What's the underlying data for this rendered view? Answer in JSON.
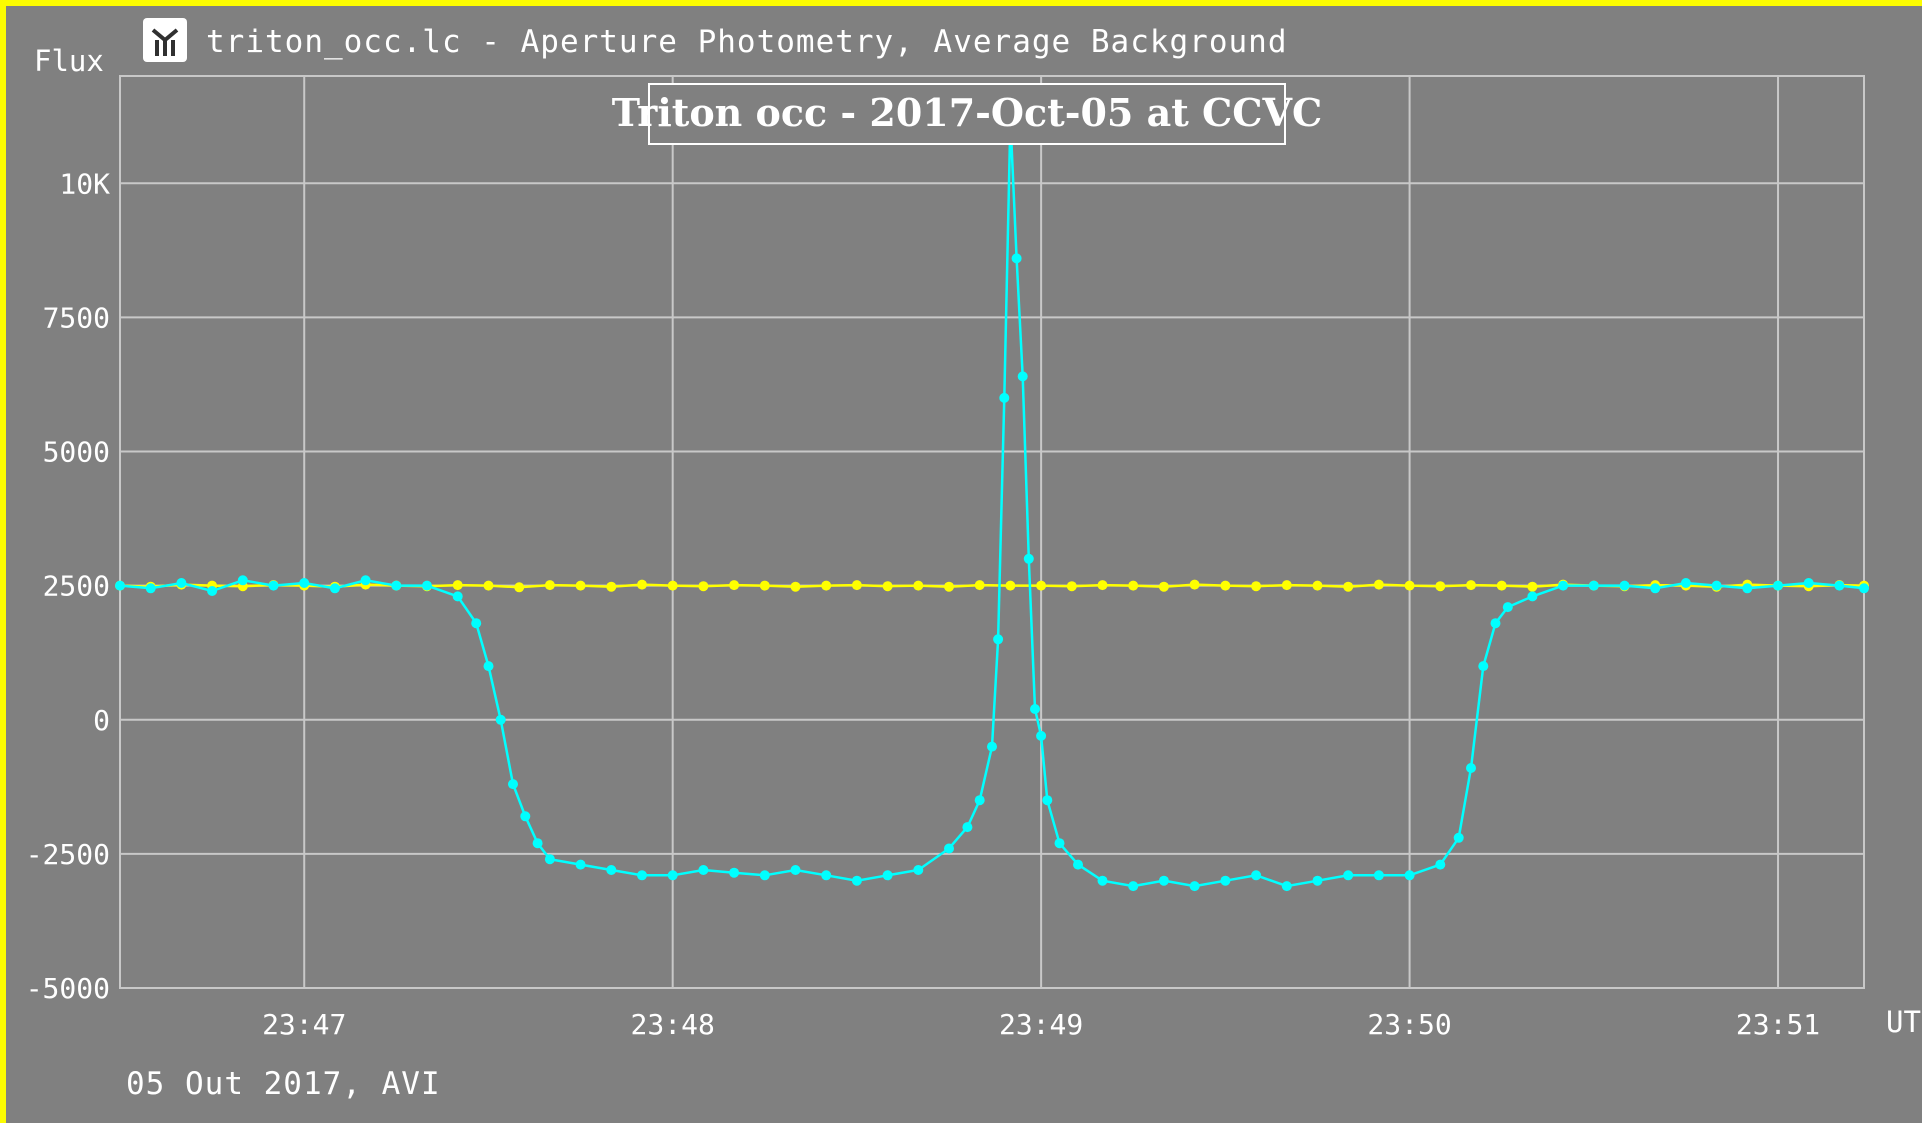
{
  "window": {
    "title": "triton_occ.lc - Aperture Photometry, Average Background",
    "footer": "05 Out 2017, AVI",
    "icon": "telescope-app-icon"
  },
  "chart_data": {
    "type": "line",
    "title": "Triton occ - 2017-Oct-05 at CCVC",
    "ylabel": "Flux",
    "xlabel": "UT",
    "x_unit": "seconds after 23:46:00 UT",
    "xlim": [
      30,
      314
    ],
    "ylim": [
      -5000,
      12000
    ],
    "x_ticks": [
      {
        "value": 60,
        "label": "23:47"
      },
      {
        "value": 120,
        "label": "23:48"
      },
      {
        "value": 180,
        "label": "23:49"
      },
      {
        "value": 240,
        "label": "23:50"
      },
      {
        "value": 300,
        "label": "23:51"
      }
    ],
    "y_ticks": [
      {
        "value": 10000,
        "label": "10K"
      },
      {
        "value": 7500,
        "label": "7500"
      },
      {
        "value": 5000,
        "label": "5000"
      },
      {
        "value": 2500,
        "label": "2500"
      },
      {
        "value": 0,
        "label": "0"
      },
      {
        "value": -2500,
        "label": "-2500"
      },
      {
        "value": -5000,
        "label": "-5000"
      }
    ],
    "grid": true,
    "colors": {
      "background": "#808080",
      "grid": "#c8c8c8",
      "target": "#00ffff",
      "comparison": "#ffff00",
      "frame_border": "#fcfc00"
    },
    "series": [
      {
        "role": "comparison",
        "color": "#ffff00",
        "values": [
          [
            30,
            2500
          ],
          [
            35,
            2480
          ],
          [
            40,
            2520
          ],
          [
            45,
            2500
          ],
          [
            50,
            2490
          ],
          [
            55,
            2510
          ],
          [
            60,
            2500
          ],
          [
            65,
            2480
          ],
          [
            70,
            2520
          ],
          [
            75,
            2500
          ],
          [
            80,
            2490
          ],
          [
            85,
            2510
          ],
          [
            90,
            2500
          ],
          [
            95,
            2470
          ],
          [
            100,
            2510
          ],
          [
            105,
            2500
          ],
          [
            110,
            2480
          ],
          [
            115,
            2520
          ],
          [
            120,
            2500
          ],
          [
            125,
            2490
          ],
          [
            130,
            2510
          ],
          [
            135,
            2500
          ],
          [
            140,
            2480
          ],
          [
            145,
            2500
          ],
          [
            150,
            2510
          ],
          [
            155,
            2490
          ],
          [
            160,
            2500
          ],
          [
            165,
            2480
          ],
          [
            170,
            2510
          ],
          [
            175,
            2500
          ],
          [
            180,
            2500
          ],
          [
            185,
            2490
          ],
          [
            190,
            2510
          ],
          [
            195,
            2500
          ],
          [
            200,
            2480
          ],
          [
            205,
            2520
          ],
          [
            210,
            2500
          ],
          [
            215,
            2490
          ],
          [
            220,
            2510
          ],
          [
            225,
            2500
          ],
          [
            230,
            2480
          ],
          [
            235,
            2520
          ],
          [
            240,
            2500
          ],
          [
            245,
            2490
          ],
          [
            250,
            2510
          ],
          [
            255,
            2500
          ],
          [
            260,
            2480
          ],
          [
            265,
            2520
          ],
          [
            270,
            2500
          ],
          [
            275,
            2490
          ],
          [
            280,
            2510
          ],
          [
            285,
            2500
          ],
          [
            290,
            2480
          ],
          [
            295,
            2520
          ],
          [
            300,
            2500
          ],
          [
            305,
            2490
          ],
          [
            310,
            2510
          ],
          [
            314,
            2500
          ]
        ]
      },
      {
        "role": "target",
        "color": "#00ffff",
        "values": [
          [
            30,
            2500
          ],
          [
            35,
            2450
          ],
          [
            40,
            2550
          ],
          [
            45,
            2400
          ],
          [
            50,
            2600
          ],
          [
            55,
            2500
          ],
          [
            60,
            2550
          ],
          [
            65,
            2450
          ],
          [
            70,
            2600
          ],
          [
            75,
            2500
          ],
          [
            80,
            2500
          ],
          [
            85,
            2300
          ],
          [
            88,
            1800
          ],
          [
            90,
            1000
          ],
          [
            92,
            0
          ],
          [
            94,
            -1200
          ],
          [
            96,
            -1800
          ],
          [
            98,
            -2300
          ],
          [
            100,
            -2600
          ],
          [
            105,
            -2700
          ],
          [
            110,
            -2800
          ],
          [
            115,
            -2900
          ],
          [
            120,
            -2900
          ],
          [
            125,
            -2800
          ],
          [
            130,
            -2850
          ],
          [
            135,
            -2900
          ],
          [
            140,
            -2800
          ],
          [
            145,
            -2900
          ],
          [
            150,
            -3000
          ],
          [
            155,
            -2900
          ],
          [
            160,
            -2800
          ],
          [
            165,
            -2400
          ],
          [
            168,
            -2000
          ],
          [
            170,
            -1500
          ],
          [
            172,
            -500
          ],
          [
            173,
            1500
          ],
          [
            174,
            6000
          ],
          [
            175,
            11200
          ],
          [
            176,
            8600
          ],
          [
            177,
            6400
          ],
          [
            178,
            3000
          ],
          [
            179,
            200
          ],
          [
            180,
            -300
          ],
          [
            181,
            -1500
          ],
          [
            183,
            -2300
          ],
          [
            186,
            -2700
          ],
          [
            190,
            -3000
          ],
          [
            195,
            -3100
          ],
          [
            200,
            -3000
          ],
          [
            205,
            -3100
          ],
          [
            210,
            -3000
          ],
          [
            215,
            -2900
          ],
          [
            220,
            -3100
          ],
          [
            225,
            -3000
          ],
          [
            230,
            -2900
          ],
          [
            235,
            -2900
          ],
          [
            240,
            -2900
          ],
          [
            245,
            -2700
          ],
          [
            248,
            -2200
          ],
          [
            250,
            -900
          ],
          [
            252,
            1000
          ],
          [
            254,
            1800
          ],
          [
            256,
            2100
          ],
          [
            260,
            2300
          ],
          [
            265,
            2500
          ],
          [
            270,
            2500
          ],
          [
            275,
            2500
          ],
          [
            280,
            2450
          ],
          [
            285,
            2550
          ],
          [
            290,
            2500
          ],
          [
            295,
            2450
          ],
          [
            300,
            2500
          ],
          [
            305,
            2550
          ],
          [
            310,
            2500
          ],
          [
            314,
            2450
          ]
        ]
      }
    ]
  }
}
